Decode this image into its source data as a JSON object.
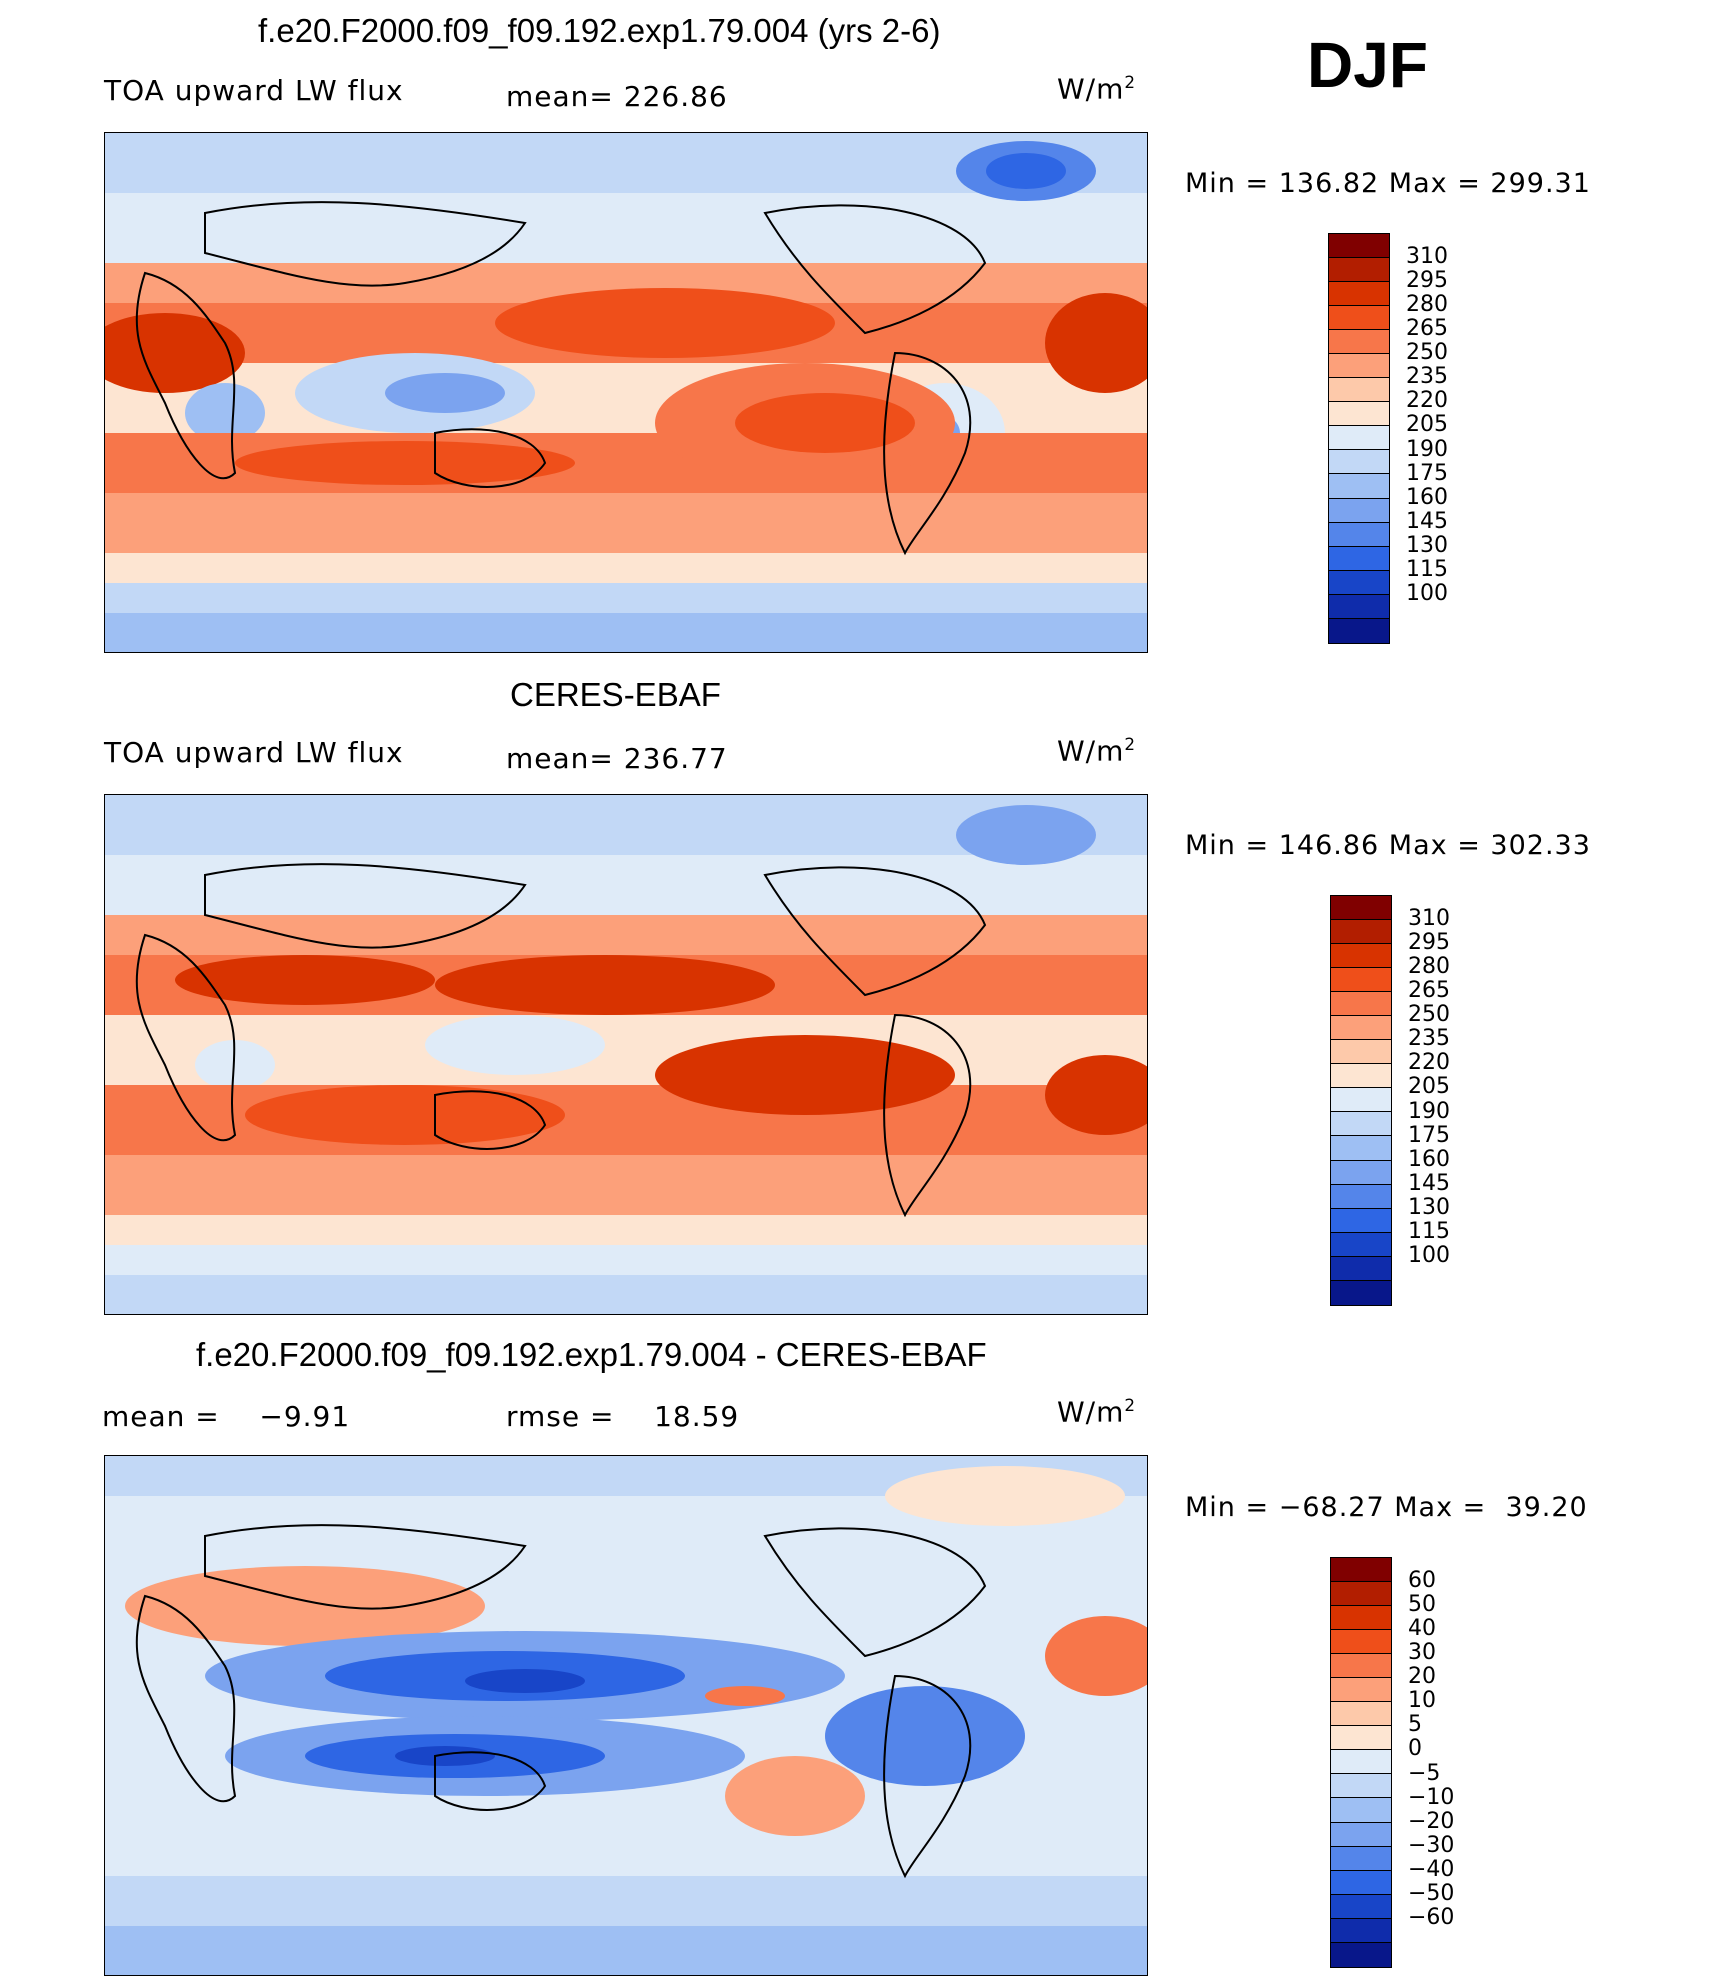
{
  "season": "DJF",
  "panels": [
    {
      "title": "f.e20.F2000.f09_f09.192.exp1.79.004 (yrs 2-6)",
      "variable": "TOA upward LW flux",
      "stat_left": "",
      "stat_mid": "mean= 226.86",
      "units": "W/m",
      "units_sup": "2",
      "min_label": "Min",
      "min_value": "136.82",
      "max_label": "Max",
      "max_value": "299.31",
      "colorbar_labels": [
        "310",
        "295",
        "280",
        "265",
        "250",
        "235",
        "220",
        "205",
        "190",
        "175",
        "160",
        "145",
        "130",
        "115",
        "100"
      ],
      "colorbar_colors": [
        "#800000",
        "#b21e00",
        "#d83300",
        "#ef4f1a",
        "#f7764a",
        "#fca07a",
        "#fdc9aa",
        "#fde5d2",
        "#dfebf8",
        "#c2d8f6",
        "#9ebff3",
        "#7ba3ef",
        "#5485ea",
        "#2e66e4",
        "#1845c8",
        "#0f2cab",
        "#08178a"
      ]
    },
    {
      "title": "CERES-EBAF",
      "variable": "TOA upward LW flux",
      "stat_left": "",
      "stat_mid": "mean= 236.77",
      "units": "W/m",
      "units_sup": "2",
      "min_label": "Min",
      "min_value": "146.86",
      "max_label": "Max",
      "max_value": "302.33",
      "colorbar_labels": [
        "310",
        "295",
        "280",
        "265",
        "250",
        "235",
        "220",
        "205",
        "190",
        "175",
        "160",
        "145",
        "130",
        "115",
        "100"
      ],
      "colorbar_colors": [
        "#800000",
        "#b21e00",
        "#d83300",
        "#ef4f1a",
        "#f7764a",
        "#fca07a",
        "#fdc9aa",
        "#fde5d2",
        "#dfebf8",
        "#c2d8f6",
        "#9ebff3",
        "#7ba3ef",
        "#5485ea",
        "#2e66e4",
        "#1845c8",
        "#0f2cab",
        "#08178a"
      ]
    },
    {
      "title": "f.e20.F2000.f09_f09.192.exp1.79.004 - CERES-EBAF",
      "variable": "",
      "stat_left": "mean =    −9.91",
      "stat_mid": "rmse =    18.59",
      "units": "W/m",
      "units_sup": "2",
      "min_label": "Min",
      "min_value": "−68.27",
      "max_label": "Max",
      "max_value": "39.20",
      "colorbar_labels": [
        "60",
        "50",
        "40",
        "30",
        "20",
        "10",
        "5",
        "0",
        "−5",
        "−10",
        "−20",
        "−30",
        "−40",
        "−50",
        "−60"
      ],
      "colorbar_colors": [
        "#800000",
        "#b21e00",
        "#d83300",
        "#ef4f1a",
        "#f7764a",
        "#fca07a",
        "#fdc9aa",
        "#fde5d2",
        "#dfebf8",
        "#c2d8f6",
        "#9ebff3",
        "#7ba3ef",
        "#5485ea",
        "#2e66e4",
        "#1845c8",
        "#0f2cab",
        "#08178a"
      ]
    }
  ]
}
